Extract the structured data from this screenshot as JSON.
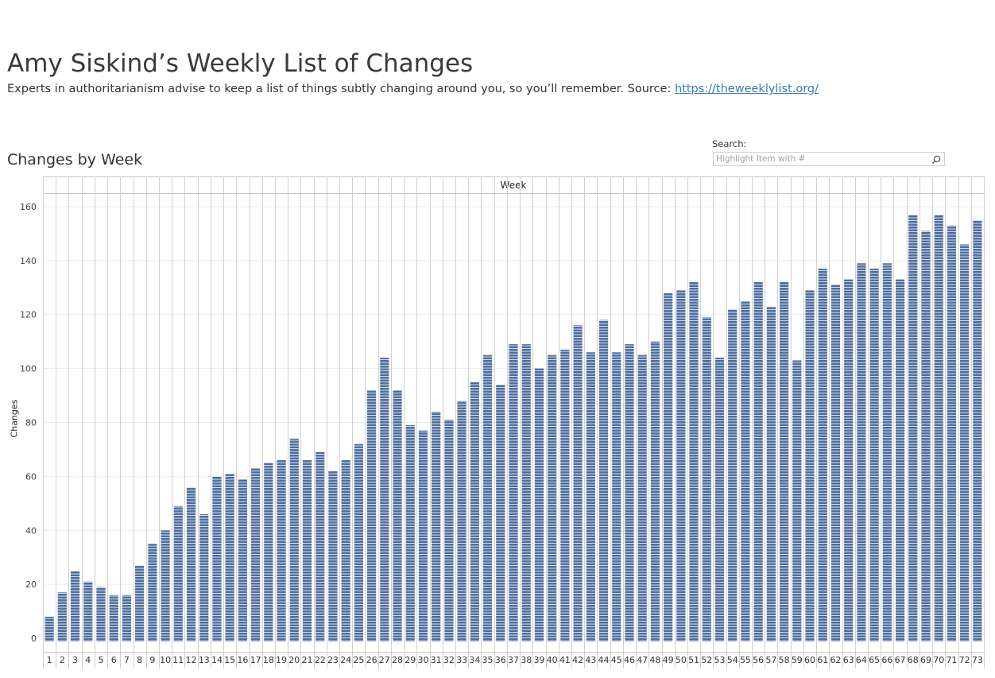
{
  "header": {
    "title": "Amy Siskind’s Weekly List of Changes",
    "subtitle_text": "Experts in authoritarianism advise to keep a list of things subtly changing around you, so you’ll remember. Source: ",
    "subtitle_link": "https://theweeklylist.org/"
  },
  "section_title": "Changes by Week",
  "search": {
    "label": "Search:",
    "placeholder": "Highlight Item with #"
  },
  "colors": {
    "bar": "#4e6d9e",
    "stripe": "#ffffff",
    "grid": "#ececec",
    "divider": "#d0d0d0"
  },
  "chart_data": {
    "type": "bar",
    "column_header": "Week",
    "ylabel": "Changes",
    "ylim": [
      -5,
      165
    ],
    "yticks": [
      0,
      20,
      40,
      60,
      80,
      100,
      120,
      140,
      160
    ],
    "categories": [
      "1",
      "2",
      "3",
      "4",
      "5",
      "6",
      "7",
      "8",
      "9",
      "10",
      "11",
      "12",
      "13",
      "14",
      "15",
      "16",
      "17",
      "18",
      "19",
      "20",
      "21",
      "22",
      "23",
      "24",
      "25",
      "26",
      "27",
      "28",
      "29",
      "30",
      "31",
      "32",
      "33",
      "34",
      "35",
      "36",
      "37",
      "38",
      "39",
      "40",
      "41",
      "42",
      "43",
      "44",
      "45",
      "46",
      "47",
      "48",
      "49",
      "50",
      "51",
      "52",
      "53",
      "54",
      "55",
      "56",
      "57",
      "58",
      "59",
      "60",
      "61",
      "62",
      "63",
      "64",
      "65",
      "66",
      "67",
      "68",
      "69",
      "70",
      "71",
      "72",
      "73"
    ],
    "values": [
      8,
      17,
      25,
      21,
      19,
      16,
      16,
      27,
      35,
      40,
      49,
      56,
      46,
      60,
      61,
      59,
      63,
      65,
      66,
      74,
      66,
      69,
      62,
      66,
      72,
      92,
      104,
      92,
      79,
      77,
      84,
      81,
      88,
      95,
      105,
      94,
      109,
      109,
      100,
      105,
      107,
      116,
      106,
      118,
      106,
      109,
      105,
      110,
      128,
      129,
      132,
      119,
      104,
      122,
      125,
      132,
      123,
      132,
      103,
      129,
      137,
      131,
      133,
      139,
      137,
      139,
      133,
      157,
      151,
      157,
      153,
      146,
      155
    ],
    "grid": true
  }
}
